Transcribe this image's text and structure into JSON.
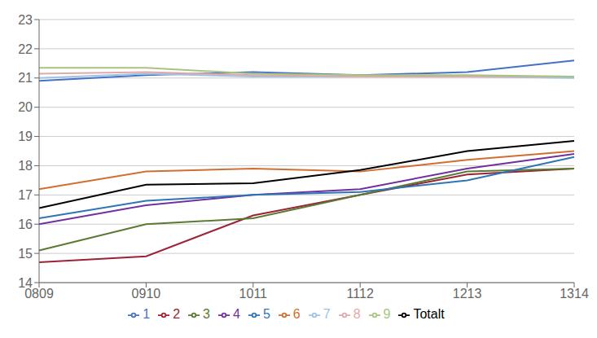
{
  "chart_data": {
    "type": "line",
    "categories": [
      "0809",
      "0910",
      "1011",
      "1112",
      "1213",
      "1314"
    ],
    "series": [
      {
        "name": "1",
        "color": "#4472C4",
        "values": [
          20.9,
          21.1,
          21.2,
          21.1,
          21.2,
          21.6
        ]
      },
      {
        "name": "2",
        "color": "#9B2335",
        "values": [
          14.7,
          14.9,
          16.3,
          17.0,
          17.7,
          17.9
        ]
      },
      {
        "name": "3",
        "color": "#5A7A32",
        "values": [
          15.1,
          16.0,
          16.2,
          17.0,
          17.8,
          17.9
        ]
      },
      {
        "name": "4",
        "color": "#7030A0",
        "values": [
          16.0,
          16.65,
          17.0,
          17.2,
          17.9,
          18.4
        ]
      },
      {
        "name": "5",
        "color": "#2E75B6",
        "values": [
          16.2,
          16.8,
          17.0,
          17.1,
          17.5,
          18.3
        ]
      },
      {
        "name": "6",
        "color": "#D07030",
        "values": [
          17.2,
          17.8,
          17.9,
          17.8,
          18.2,
          18.5
        ]
      },
      {
        "name": "7",
        "color": "#9DC3E6",
        "values": [
          21.0,
          21.15,
          21.05,
          21.05,
          21.05,
          21.0
        ]
      },
      {
        "name": "8",
        "color": "#E0AAAA",
        "values": [
          21.15,
          21.2,
          21.1,
          21.05,
          21.05,
          21.05
        ]
      },
      {
        "name": "9",
        "color": "#A9C47F",
        "values": [
          21.35,
          21.35,
          21.15,
          21.1,
          21.1,
          21.05
        ]
      },
      {
        "name": "Totalt",
        "color": "#000000",
        "values": [
          16.55,
          17.35,
          17.4,
          17.85,
          18.5,
          18.85
        ]
      }
    ],
    "ylim": [
      14,
      23
    ],
    "yticks": [
      14,
      15,
      16,
      17,
      18,
      19,
      20,
      21,
      22,
      23
    ],
    "grid": "y",
    "legend": "bottom"
  }
}
